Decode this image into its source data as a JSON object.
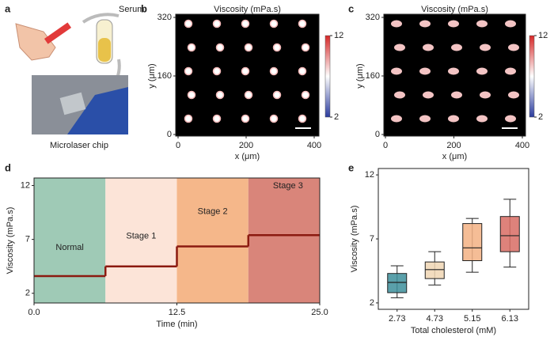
{
  "panel_a": {
    "panel": "a",
    "labels": [
      "Serum",
      "Microlaser chip"
    ]
  },
  "chart_data": [
    {
      "type": "heatmap",
      "panel": "b",
      "title": "Viscosity (mPa.s)",
      "xlabel": "x (μm)",
      "ylabel": "y (μm)",
      "xlim": [
        0,
        400
      ],
      "ylim": [
        0,
        320
      ],
      "xticks": [
        0,
        200,
        400
      ],
      "yticks": [
        0,
        160,
        320
      ],
      "clim": [
        2,
        12
      ],
      "cticks": [
        2,
        12
      ],
      "colormap": [
        "#2b3c9e",
        "#ffffff",
        "#d62828"
      ]
    },
    {
      "type": "heatmap",
      "panel": "c",
      "title": "Viscosity (mPa.s)",
      "xlabel": "x (μm)",
      "ylabel": "y (μm)",
      "xlim": [
        0,
        400
      ],
      "ylim": [
        0,
        320
      ],
      "xticks": [
        0,
        200,
        400
      ],
      "yticks": [
        0,
        160,
        320
      ],
      "clim": [
        2,
        12
      ],
      "cticks": [
        2,
        12
      ],
      "colormap": [
        "#2b3c9e",
        "#ffffff",
        "#d62828"
      ]
    },
    {
      "type": "step",
      "panel": "d",
      "xlabel": "Time (min)",
      "ylabel": "Viscosity (mPa.s)",
      "xlim": [
        0,
        25
      ],
      "ylim": [
        1.1,
        12.7
      ],
      "xticks": [
        {
          "value": 0,
          "label": "0.0"
        },
        12.5,
        {
          "value": 25,
          "label": "25.0"
        }
      ],
      "yticks": [
        2,
        7,
        12
      ],
      "line_color": "#8b1a10",
      "stages": [
        {
          "name": "Normal",
          "x": [
            0,
            6.25
          ],
          "value": 3.6,
          "color": "#9fcab6"
        },
        {
          "name": "Stage 1",
          "x": [
            6.25,
            12.5
          ],
          "value": 4.5,
          "color": "#fce4d8"
        },
        {
          "name": "Stage 2",
          "x": [
            12.5,
            18.75
          ],
          "value": 6.35,
          "color": "#f5b78a"
        },
        {
          "name": "Stage 3",
          "x": [
            18.75,
            25
          ],
          "value": 7.4,
          "color": "#d9857a"
        }
      ]
    },
    {
      "type": "box",
      "panel": "e",
      "xlabel": "Total cholesterol (mM)",
      "ylabel": "Viscosity (mPa.s)",
      "ylim": [
        1.5,
        12.5
      ],
      "yticks": [
        2,
        7,
        12
      ],
      "categories": [
        "2.73",
        "4.73",
        "5.15",
        "6.13"
      ],
      "boxes": [
        {
          "whislo": 2.4,
          "q1": 2.8,
          "med": 3.6,
          "q3": 4.3,
          "whishi": 4.9,
          "color": "#3d8f9b"
        },
        {
          "whislo": 3.4,
          "q1": 3.9,
          "med": 4.6,
          "q3": 5.2,
          "whishi": 6.0,
          "color": "#f0d6b4"
        },
        {
          "whislo": 4.4,
          "q1": 5.3,
          "med": 6.3,
          "q3": 8.2,
          "whishi": 8.6,
          "color": "#f3b184"
        },
        {
          "whislo": 4.8,
          "q1": 6.0,
          "med": 7.25,
          "q3": 8.75,
          "whishi": 10.1,
          "color": "#d86c64"
        }
      ]
    }
  ]
}
